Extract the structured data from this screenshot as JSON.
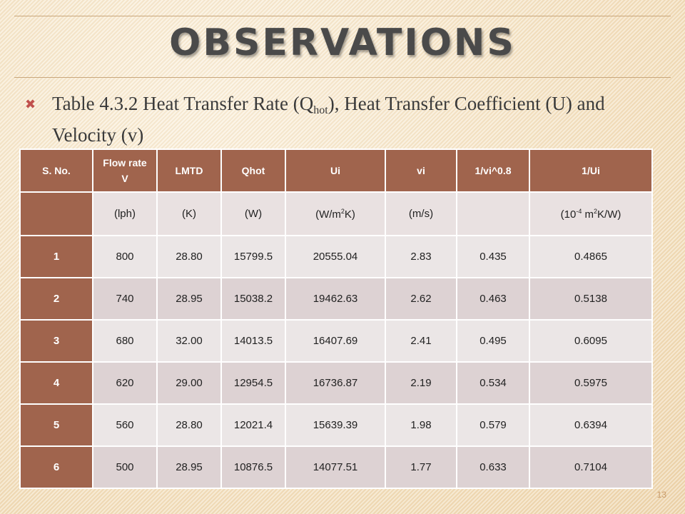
{
  "slide": {
    "title": "OBSERVATIONS",
    "bullet": {
      "text_before": "Table 4.3.2 Heat Transfer Rate (Q",
      "subscript": "hot",
      "text_after": "), Heat Transfer Coefficient (U) and Velocity (v)"
    },
    "page_number": "13",
    "accent_color": "#a0644d"
  },
  "table": {
    "headers": {
      "sno": "S. No.",
      "flow_line1": "Flow rate",
      "flow_line2": "V",
      "lmtd": "LMTD",
      "qhot": "Qhot",
      "ui": "Ui",
      "vi": "vi",
      "vi_pow": "1/vi^0.8",
      "inv_ui": "1/Ui"
    },
    "units": {
      "sno": "",
      "flow": "(lph)",
      "lmtd": "(K)",
      "qhot": "(W)",
      "ui_pre": "(W/m",
      "ui_sup": "2",
      "ui_post": "K)",
      "vi": "(m/s)",
      "vi_pow": "",
      "inv_pre": "(10",
      "inv_sup1": "-4",
      "inv_mid": " m",
      "inv_sup2": "2",
      "inv_post": "K/W)"
    },
    "rows": [
      {
        "sno": "1",
        "flow": "800",
        "lmtd": "28.80",
        "qhot": "15799.5",
        "ui": "20555.04",
        "vi": "2.83",
        "vi_pow": "0.435",
        "inv_ui": "0.4865"
      },
      {
        "sno": "2",
        "flow": "740",
        "lmtd": "28.95",
        "qhot": "15038.2",
        "ui": "19462.63",
        "vi": "2.62",
        "vi_pow": "0.463",
        "inv_ui": "0.5138"
      },
      {
        "sno": "3",
        "flow": "680",
        "lmtd": "32.00",
        "qhot": "14013.5",
        "ui": "16407.69",
        "vi": "2.41",
        "vi_pow": "0.495",
        "inv_ui": "0.6095"
      },
      {
        "sno": "4",
        "flow": "620",
        "lmtd": "29.00",
        "qhot": "12954.5",
        "ui": "16736.87",
        "vi": "2.19",
        "vi_pow": "0.534",
        "inv_ui": "0.5975"
      },
      {
        "sno": "5",
        "flow": "560",
        "lmtd": "28.80",
        "qhot": "12021.4",
        "ui": "15639.39",
        "vi": "1.98",
        "vi_pow": "0.579",
        "inv_ui": "0.6394"
      },
      {
        "sno": "6",
        "flow": "500",
        "lmtd": "28.95",
        "qhot": "10876.5",
        "ui": "14077.51",
        "vi": "1.77",
        "vi_pow": "0.633",
        "inv_ui": "0.7104"
      }
    ]
  }
}
